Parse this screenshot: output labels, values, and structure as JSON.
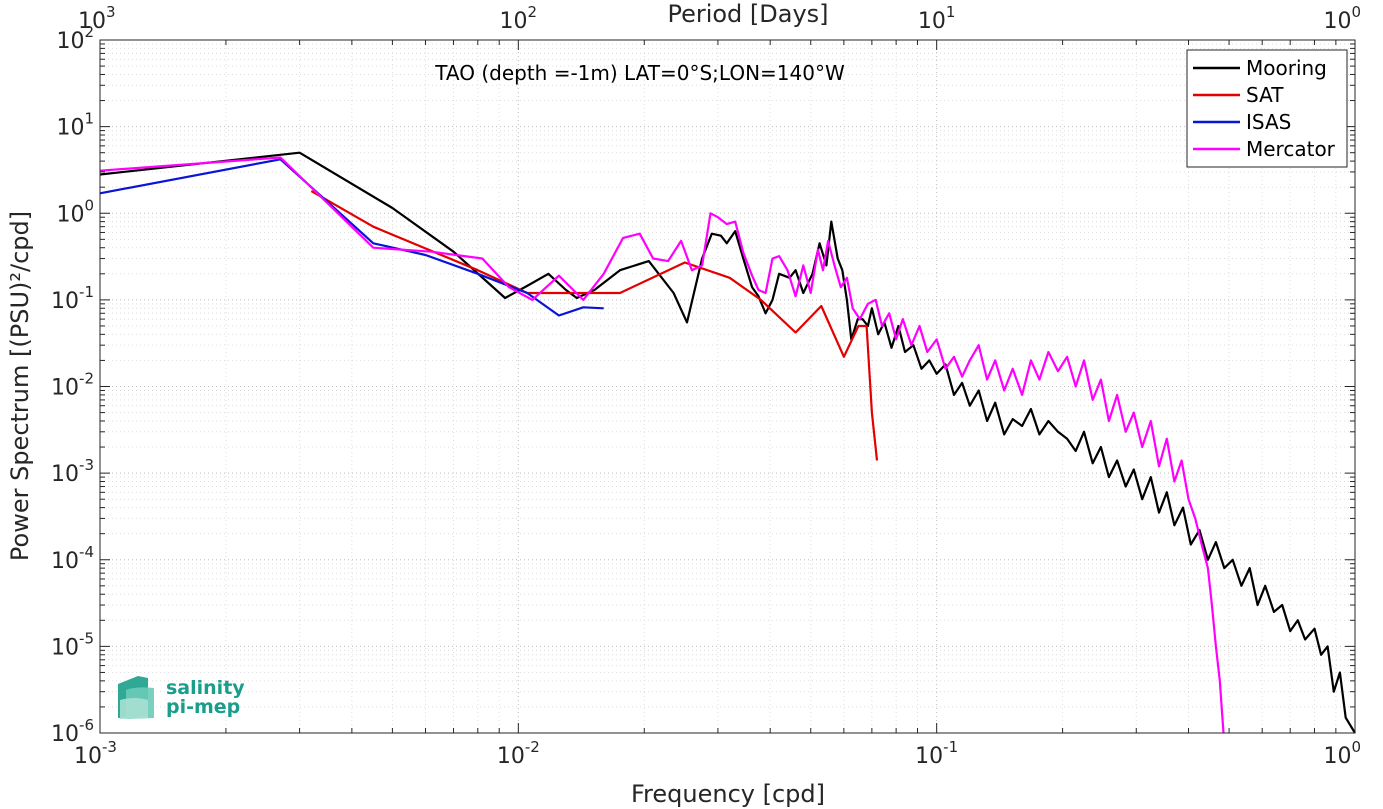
{
  "chart_data": {
    "type": "line",
    "title": "TAO (depth =-1m) LAT=0°S;LON=140°W",
    "xlabel": "Frequency [cpd]",
    "ylabel": "Power Spectrum [(PSU)²/cpd]",
    "x2label": "Period [Days]",
    "xscale": "log",
    "yscale": "log",
    "xlim": [
      0.001,
      1
    ],
    "ylim": [
      1e-06,
      100
    ],
    "grid": true,
    "legend_position": "top-right",
    "x_ticks": [
      {
        "value": 0.001,
        "base": "10",
        "exp": "-3"
      },
      {
        "value": 0.01,
        "base": "10",
        "exp": "-2"
      },
      {
        "value": 0.1,
        "base": "10",
        "exp": "-1"
      },
      {
        "value": 1,
        "base": "10",
        "exp": "0"
      }
    ],
    "x2_ticks": [
      {
        "value": 0.001,
        "base": "10",
        "exp": "3"
      },
      {
        "value": 0.01,
        "base": "10",
        "exp": "2"
      },
      {
        "value": 0.1,
        "base": "10",
        "exp": "1"
      },
      {
        "value": 1,
        "base": "10",
        "exp": "0"
      }
    ],
    "y_ticks": [
      {
        "value": 100,
        "base": "10",
        "exp": "2"
      },
      {
        "value": 10,
        "base": "10",
        "exp": "1"
      },
      {
        "value": 1,
        "base": "10",
        "exp": "0"
      },
      {
        "value": 0.1,
        "base": "10",
        "exp": "-1"
      },
      {
        "value": 0.01,
        "base": "10",
        "exp": "-2"
      },
      {
        "value": 0.001,
        "base": "10",
        "exp": "-3"
      },
      {
        "value": 0.0001,
        "base": "10",
        "exp": "-4"
      },
      {
        "value": 1e-05,
        "base": "10",
        "exp": "-5"
      },
      {
        "value": 1e-06,
        "base": "10",
        "exp": "-6"
      }
    ],
    "series": [
      {
        "name": "Mooring",
        "color": "#000000",
        "points": [
          [
            0.001,
            2.8
          ],
          [
            0.003,
            5.0
          ],
          [
            0.005,
            1.15
          ],
          [
            0.007,
            0.36
          ],
          [
            0.0093,
            0.105
          ],
          [
            0.0105,
            0.145
          ],
          [
            0.0118,
            0.2
          ],
          [
            0.013,
            0.13
          ],
          [
            0.0138,
            0.105
          ],
          [
            0.0152,
            0.13
          ],
          [
            0.0175,
            0.22
          ],
          [
            0.0205,
            0.28
          ],
          [
            0.0235,
            0.12
          ],
          [
            0.0253,
            0.055
          ],
          [
            0.0275,
            0.3
          ],
          [
            0.029,
            0.58
          ],
          [
            0.0305,
            0.55
          ],
          [
            0.0315,
            0.45
          ],
          [
            0.033,
            0.62
          ],
          [
            0.0345,
            0.3
          ],
          [
            0.0362,
            0.14
          ],
          [
            0.0375,
            0.11
          ],
          [
            0.039,
            0.07
          ],
          [
            0.0405,
            0.1
          ],
          [
            0.042,
            0.2
          ],
          [
            0.0445,
            0.18
          ],
          [
            0.046,
            0.22
          ],
          [
            0.048,
            0.12
          ],
          [
            0.0505,
            0.2
          ],
          [
            0.0525,
            0.45
          ],
          [
            0.0545,
            0.25
          ],
          [
            0.056,
            0.8
          ],
          [
            0.058,
            0.3
          ],
          [
            0.0595,
            0.22
          ],
          [
            0.061,
            0.1
          ],
          [
            0.0625,
            0.035
          ],
          [
            0.0648,
            0.06
          ],
          [
            0.0665,
            0.06
          ],
          [
            0.0685,
            0.05
          ],
          [
            0.07,
            0.08
          ],
          [
            0.0725,
            0.04
          ],
          [
            0.075,
            0.055
          ],
          [
            0.078,
            0.028
          ],
          [
            0.081,
            0.05
          ],
          [
            0.084,
            0.025
          ],
          [
            0.088,
            0.03
          ],
          [
            0.092,
            0.016
          ],
          [
            0.096,
            0.02
          ],
          [
            0.1,
            0.014
          ],
          [
            0.105,
            0.018
          ],
          [
            0.11,
            0.008
          ],
          [
            0.115,
            0.011
          ],
          [
            0.12,
            0.006
          ],
          [
            0.126,
            0.009
          ],
          [
            0.132,
            0.004
          ],
          [
            0.138,
            0.0065
          ],
          [
            0.145,
            0.0028
          ],
          [
            0.152,
            0.0042
          ],
          [
            0.16,
            0.0035
          ],
          [
            0.168,
            0.0055
          ],
          [
            0.176,
            0.0028
          ],
          [
            0.185,
            0.004
          ],
          [
            0.195,
            0.003
          ],
          [
            0.205,
            0.0025
          ],
          [
            0.215,
            0.0018
          ],
          [
            0.225,
            0.003
          ],
          [
            0.236,
            0.0013
          ],
          [
            0.247,
            0.002
          ],
          [
            0.258,
            0.0009
          ],
          [
            0.27,
            0.0014
          ],
          [
            0.283,
            0.0007
          ],
          [
            0.296,
            0.0011
          ],
          [
            0.31,
            0.0005
          ],
          [
            0.325,
            0.0009
          ],
          [
            0.34,
            0.00035
          ],
          [
            0.355,
            0.0006
          ],
          [
            0.37,
            0.00025
          ],
          [
            0.388,
            0.0004
          ],
          [
            0.405,
            0.00015
          ],
          [
            0.425,
            0.00022
          ],
          [
            0.445,
            0.0001
          ],
          [
            0.465,
            0.00016
          ],
          [
            0.487,
            8e-05
          ],
          [
            0.51,
            0.0001
          ],
          [
            0.535,
            5e-05
          ],
          [
            0.56,
            8e-05
          ],
          [
            0.585,
            3e-05
          ],
          [
            0.61,
            5e-05
          ],
          [
            0.64,
            2.5e-05
          ],
          [
            0.67,
            3e-05
          ],
          [
            0.7,
            1.5e-05
          ],
          [
            0.73,
            2e-05
          ],
          [
            0.76,
            1.2e-05
          ],
          [
            0.8,
            1.6e-05
          ],
          [
            0.83,
            8e-06
          ],
          [
            0.86,
            1e-05
          ],
          [
            0.89,
            3e-06
          ],
          [
            0.92,
            5e-06
          ],
          [
            0.95,
            1.5e-06
          ],
          [
            1.0,
            1e-06
          ]
        ]
      },
      {
        "name": "SAT",
        "color": "#e30000",
        "points": [
          [
            0.0032,
            1.8
          ],
          [
            0.0045,
            0.7
          ],
          [
            0.008,
            0.22
          ],
          [
            0.0105,
            0.12
          ],
          [
            0.0135,
            0.12
          ],
          [
            0.0175,
            0.12
          ],
          [
            0.025,
            0.27
          ],
          [
            0.032,
            0.18
          ],
          [
            0.038,
            0.1
          ],
          [
            0.046,
            0.042
          ],
          [
            0.053,
            0.085
          ],
          [
            0.06,
            0.022
          ],
          [
            0.065,
            0.05
          ],
          [
            0.068,
            0.05
          ],
          [
            0.07,
            0.005
          ],
          [
            0.072,
            0.0014
          ]
        ]
      },
      {
        "name": "ISAS",
        "color": "#0a14d8",
        "points": [
          [
            0.001,
            1.7
          ],
          [
            0.0027,
            4.2
          ],
          [
            0.0045,
            0.45
          ],
          [
            0.006,
            0.33
          ],
          [
            0.008,
            0.2
          ],
          [
            0.0105,
            0.12
          ],
          [
            0.0125,
            0.066
          ],
          [
            0.0143,
            0.082
          ],
          [
            0.016,
            0.08
          ]
        ]
      },
      {
        "name": "Mercator",
        "color": "#ff00ff",
        "points": [
          [
            0.001,
            3.1
          ],
          [
            0.0027,
            4.4
          ],
          [
            0.0045,
            0.4
          ],
          [
            0.0062,
            0.36
          ],
          [
            0.0082,
            0.3
          ],
          [
            0.0095,
            0.14
          ],
          [
            0.0108,
            0.1
          ],
          [
            0.0125,
            0.19
          ],
          [
            0.0143,
            0.1
          ],
          [
            0.016,
            0.2
          ],
          [
            0.0178,
            0.52
          ],
          [
            0.0195,
            0.58
          ],
          [
            0.021,
            0.3
          ],
          [
            0.0228,
            0.28
          ],
          [
            0.0245,
            0.48
          ],
          [
            0.026,
            0.22
          ],
          [
            0.0275,
            0.25
          ],
          [
            0.0288,
            1.0
          ],
          [
            0.03,
            0.9
          ],
          [
            0.0315,
            0.75
          ],
          [
            0.033,
            0.8
          ],
          [
            0.0345,
            0.35
          ],
          [
            0.0362,
            0.19
          ],
          [
            0.0375,
            0.13
          ],
          [
            0.039,
            0.12
          ],
          [
            0.0405,
            0.3
          ],
          [
            0.042,
            0.32
          ],
          [
            0.044,
            0.22
          ],
          [
            0.046,
            0.11
          ],
          [
            0.048,
            0.25
          ],
          [
            0.05,
            0.12
          ],
          [
            0.052,
            0.38
          ],
          [
            0.0535,
            0.22
          ],
          [
            0.055,
            0.48
          ],
          [
            0.057,
            0.25
          ],
          [
            0.059,
            0.14
          ],
          [
            0.061,
            0.18
          ],
          [
            0.063,
            0.08
          ],
          [
            0.0655,
            0.06
          ],
          [
            0.0685,
            0.09
          ],
          [
            0.0715,
            0.1
          ],
          [
            0.074,
            0.05
          ],
          [
            0.077,
            0.07
          ],
          [
            0.08,
            0.035
          ],
          [
            0.083,
            0.06
          ],
          [
            0.087,
            0.03
          ],
          [
            0.091,
            0.05
          ],
          [
            0.095,
            0.025
          ],
          [
            0.1,
            0.035
          ],
          [
            0.105,
            0.016
          ],
          [
            0.11,
            0.022
          ],
          [
            0.115,
            0.013
          ],
          [
            0.12,
            0.02
          ],
          [
            0.126,
            0.03
          ],
          [
            0.132,
            0.012
          ],
          [
            0.138,
            0.02
          ],
          [
            0.145,
            0.009
          ],
          [
            0.152,
            0.016
          ],
          [
            0.16,
            0.008
          ],
          [
            0.168,
            0.02
          ],
          [
            0.176,
            0.012
          ],
          [
            0.185,
            0.025
          ],
          [
            0.195,
            0.015
          ],
          [
            0.205,
            0.022
          ],
          [
            0.215,
            0.01
          ],
          [
            0.225,
            0.02
          ],
          [
            0.236,
            0.007
          ],
          [
            0.247,
            0.012
          ],
          [
            0.258,
            0.004
          ],
          [
            0.27,
            0.008
          ],
          [
            0.283,
            0.003
          ],
          [
            0.296,
            0.005
          ],
          [
            0.31,
            0.002
          ],
          [
            0.325,
            0.004
          ],
          [
            0.34,
            0.0012
          ],
          [
            0.355,
            0.0025
          ],
          [
            0.37,
            0.0008
          ],
          [
            0.385,
            0.0014
          ],
          [
            0.4,
            0.0005
          ],
          [
            0.415,
            0.0003
          ],
          [
            0.43,
            0.00015
          ],
          [
            0.445,
            8e-05
          ],
          [
            0.455,
            3e-05
          ],
          [
            0.465,
            1e-05
          ],
          [
            0.475,
            4e-06
          ],
          [
            0.485,
            1e-06
          ]
        ]
      }
    ]
  },
  "logo": {
    "line1": "salinity",
    "line2": "pi-mep"
  }
}
